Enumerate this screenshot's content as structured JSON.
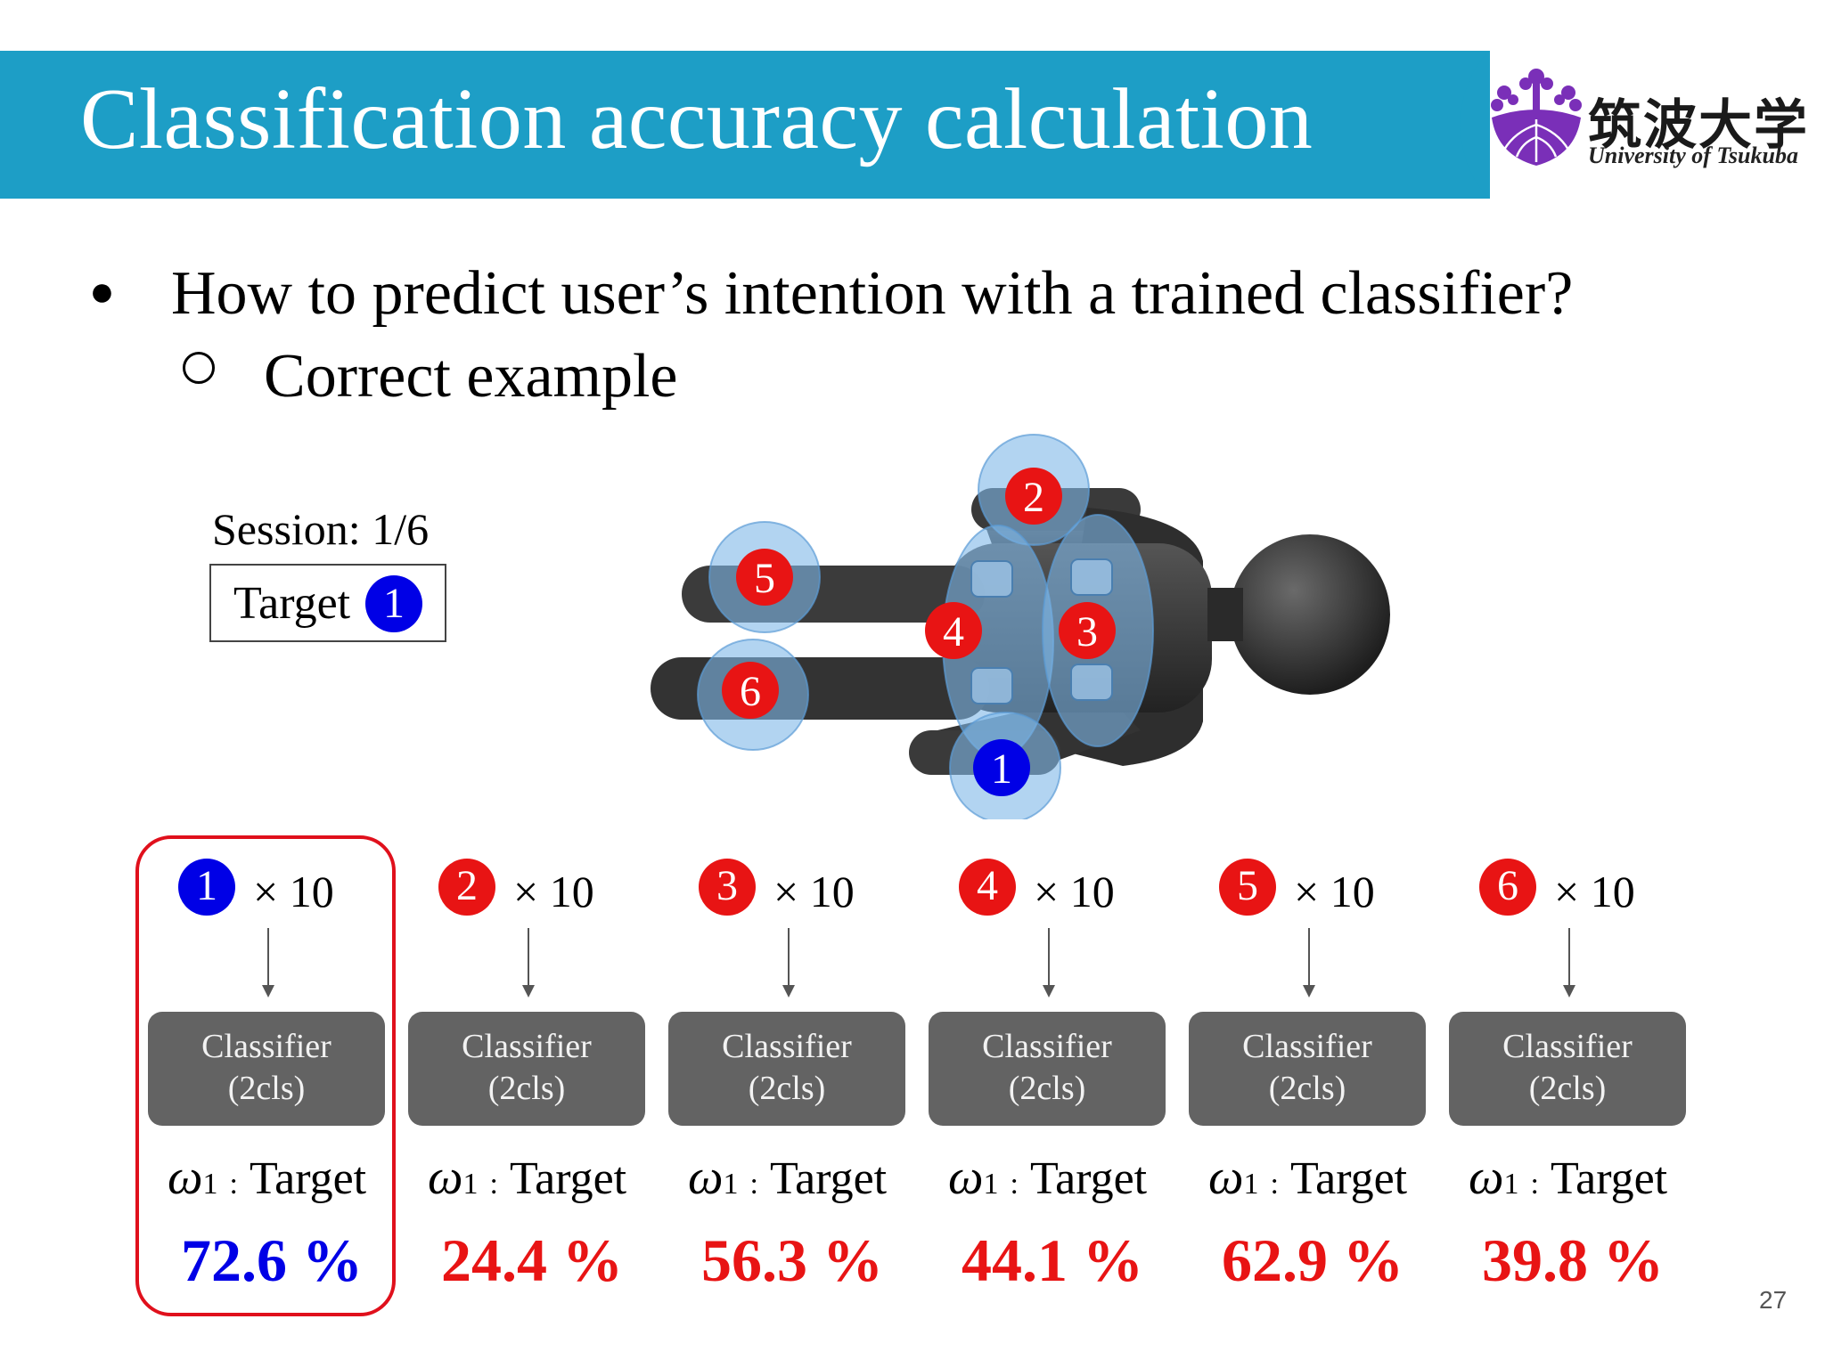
{
  "header": {
    "title": "Classification accuracy calculation",
    "logo_jp": "筑波大学",
    "logo_en": "University of Tsukuba"
  },
  "bullets": {
    "main": "How to predict user’s intention with a trained classifier?",
    "sub": "Correct example"
  },
  "session": {
    "label": "Session: 1/6",
    "target_label": "Target",
    "target_number": "1"
  },
  "figure": {
    "markers": [
      {
        "number": "1",
        "color": "blue"
      },
      {
        "number": "2",
        "color": "red"
      },
      {
        "number": "3",
        "color": "red"
      },
      {
        "number": "4",
        "color": "red"
      },
      {
        "number": "5",
        "color": "red"
      },
      {
        "number": "6",
        "color": "red"
      }
    ]
  },
  "columns": [
    {
      "number": "1",
      "color": "blue",
      "times": "× 10",
      "classifier_line1": "Classifier",
      "classifier_line2": "(2cls)",
      "omega": "ω",
      "omega_sub": "1",
      "omega_colon": ":",
      "omega_label": "Target",
      "accuracy": "72.6 %"
    },
    {
      "number": "2",
      "color": "red",
      "times": "× 10",
      "classifier_line1": "Classifier",
      "classifier_line2": "(2cls)",
      "omega": "ω",
      "omega_sub": "1",
      "omega_colon": ":",
      "omega_label": "Target",
      "accuracy": "24.4 %"
    },
    {
      "number": "3",
      "color": "red",
      "times": "× 10",
      "classifier_line1": "Classifier",
      "classifier_line2": "(2cls)",
      "omega": "ω",
      "omega_sub": "1",
      "omega_colon": ":",
      "omega_label": "Target",
      "accuracy": "56.3 %"
    },
    {
      "number": "4",
      "color": "red",
      "times": "× 10",
      "classifier_line1": "Classifier",
      "classifier_line2": "(2cls)",
      "omega": "ω",
      "omega_sub": "1",
      "omega_colon": ":",
      "omega_label": "Target",
      "accuracy": "44.1 %"
    },
    {
      "number": "5",
      "color": "red",
      "times": "× 10",
      "classifier_line1": "Classifier",
      "classifier_line2": "(2cls)",
      "omega": "ω",
      "omega_sub": "1",
      "omega_colon": ":",
      "omega_label": "Target",
      "accuracy": "62.9 %"
    },
    {
      "number": "6",
      "color": "red",
      "times": "× 10",
      "classifier_line1": "Classifier",
      "classifier_line2": "(2cls)",
      "omega": "ω",
      "omega_sub": "1",
      "omega_colon": ":",
      "omega_label": "Target",
      "accuracy": "39.8 %"
    }
  ],
  "colors": {
    "header_bar": "#1d9ec6",
    "blue": "#0000e6",
    "red": "#e81414",
    "classifier_box": "#636363",
    "highlight_border": "#e0101c",
    "logo_purple": "#7a2fb8"
  },
  "page_number": "27"
}
